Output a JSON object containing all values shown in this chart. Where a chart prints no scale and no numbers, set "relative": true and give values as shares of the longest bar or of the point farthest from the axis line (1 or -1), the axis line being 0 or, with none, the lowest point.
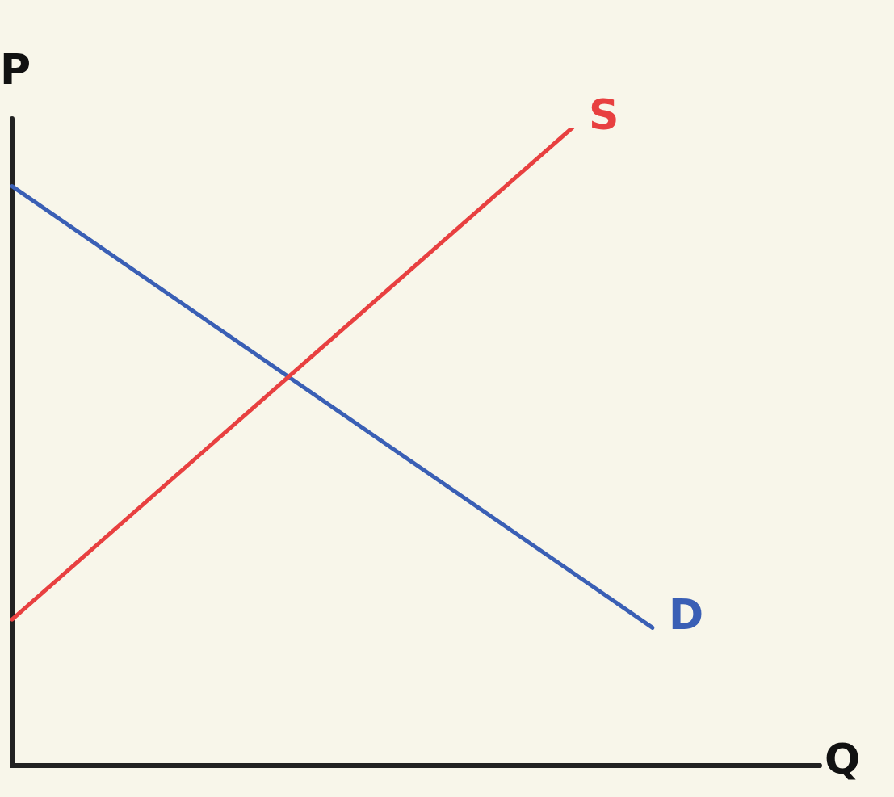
{
  "chart_data": {
    "type": "line",
    "relative": true,
    "xlabel": "Q",
    "ylabel": "P",
    "categories": [
      null,
      null,
      null,
      null,
      null,
      null,
      null,
      null,
      null
    ],
    "grid": false,
    "legend": false,
    "marker": "none",
    "line_style": "solid",
    "series": [
      {
        "name": "S",
        "color": "#e84040",
        "values": [
          0.229,
          null,
          null,
          null,
          null,
          null,
          null,
          1.0,
          null
        ]
      },
      {
        "name": "D",
        "color": "#3a5fb5",
        "values": [
          0.908,
          null,
          null,
          null,
          null,
          null,
          null,
          null,
          0.216
        ]
      }
    ]
  }
}
